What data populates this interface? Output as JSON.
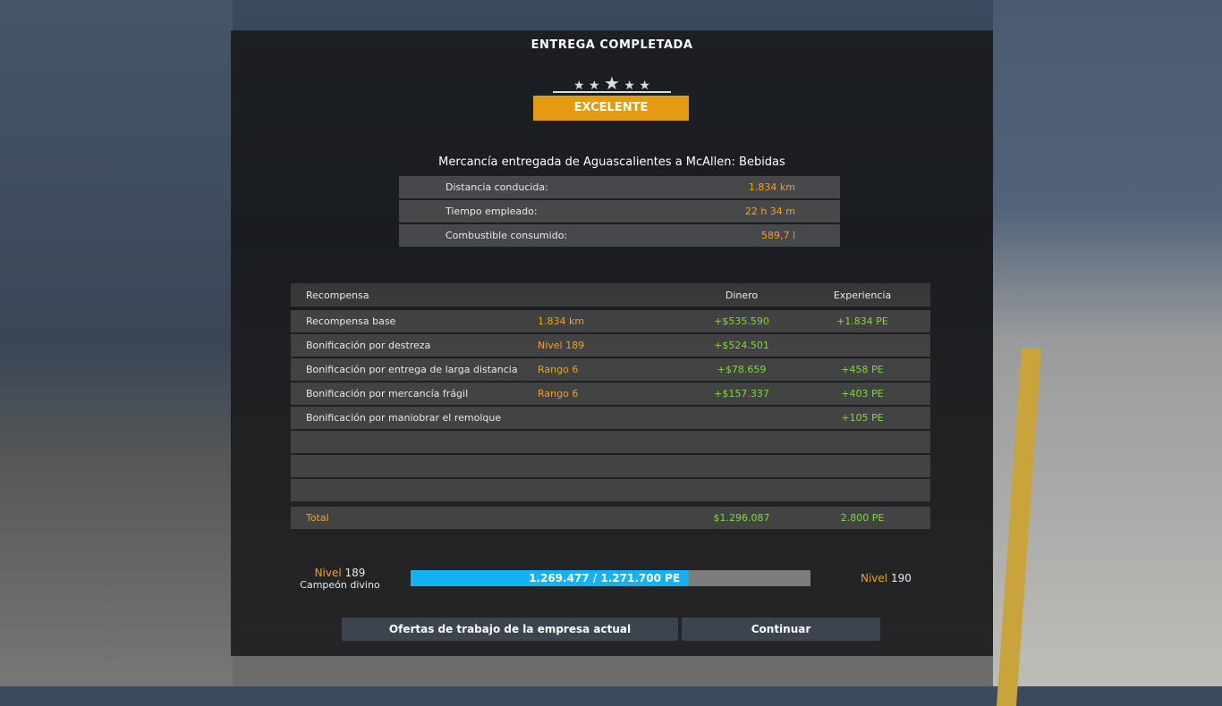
{
  "title": "ENTREGA COMPLETADA",
  "rating": {
    "stars": 5,
    "label": "EXCELENTE"
  },
  "subtitle": "Mercancía entregada de Aguascalientes a McAllen: Bebidas",
  "stats": [
    {
      "label": "Distancia conducida:",
      "value": "1.834 km"
    },
    {
      "label": "Tiempo empleado:",
      "value": "22 h 34 m"
    },
    {
      "label": "Combustible consumido:",
      "value": "589,7 l"
    }
  ],
  "table": {
    "headers": {
      "reward": "Recompensa",
      "money": "Dinero",
      "xp": "Experiencia"
    },
    "rows": [
      {
        "label": "Recompensa base",
        "detail": "1.834 km",
        "money": "+$535.590",
        "xp": "+1.834 PE"
      },
      {
        "label": "Bonificación por destreza",
        "detail": "Nivel 189",
        "money": "+$524.501",
        "xp": ""
      },
      {
        "label": "Bonificación por entrega de larga distancia",
        "detail": "Rango 6",
        "money": "+$78.659",
        "xp": "+458 PE"
      },
      {
        "label": "Bonificación por mercancía frágil",
        "detail": "Rango 6",
        "money": "+$157.337",
        "xp": "+403 PE"
      },
      {
        "label": "Bonificación por maniobrar el remolque",
        "detail": "",
        "money": "",
        "xp": "+105 PE"
      },
      {
        "label": "",
        "detail": "",
        "money": "",
        "xp": ""
      },
      {
        "label": "",
        "detail": "",
        "money": "",
        "xp": ""
      },
      {
        "label": "",
        "detail": "",
        "money": "",
        "xp": ""
      }
    ],
    "total": {
      "label": "Total",
      "money": "$1.296.087",
      "xp": "2.800 PE"
    }
  },
  "progress": {
    "current_level_word": "Nivel",
    "current_level": "189",
    "rank": "Campeón divino",
    "text": "1.269.477 / 1.271.700 PE",
    "fill_fraction": 0.696,
    "next_level_word": "Nivel",
    "next_level": "190"
  },
  "buttons": {
    "offers": "Ofertas de trabajo de la empresa actual",
    "continue": "Continuar"
  },
  "colors": {
    "accent": "#e59a12",
    "positive": "#7fd93a",
    "progress": "#12b2f5"
  }
}
